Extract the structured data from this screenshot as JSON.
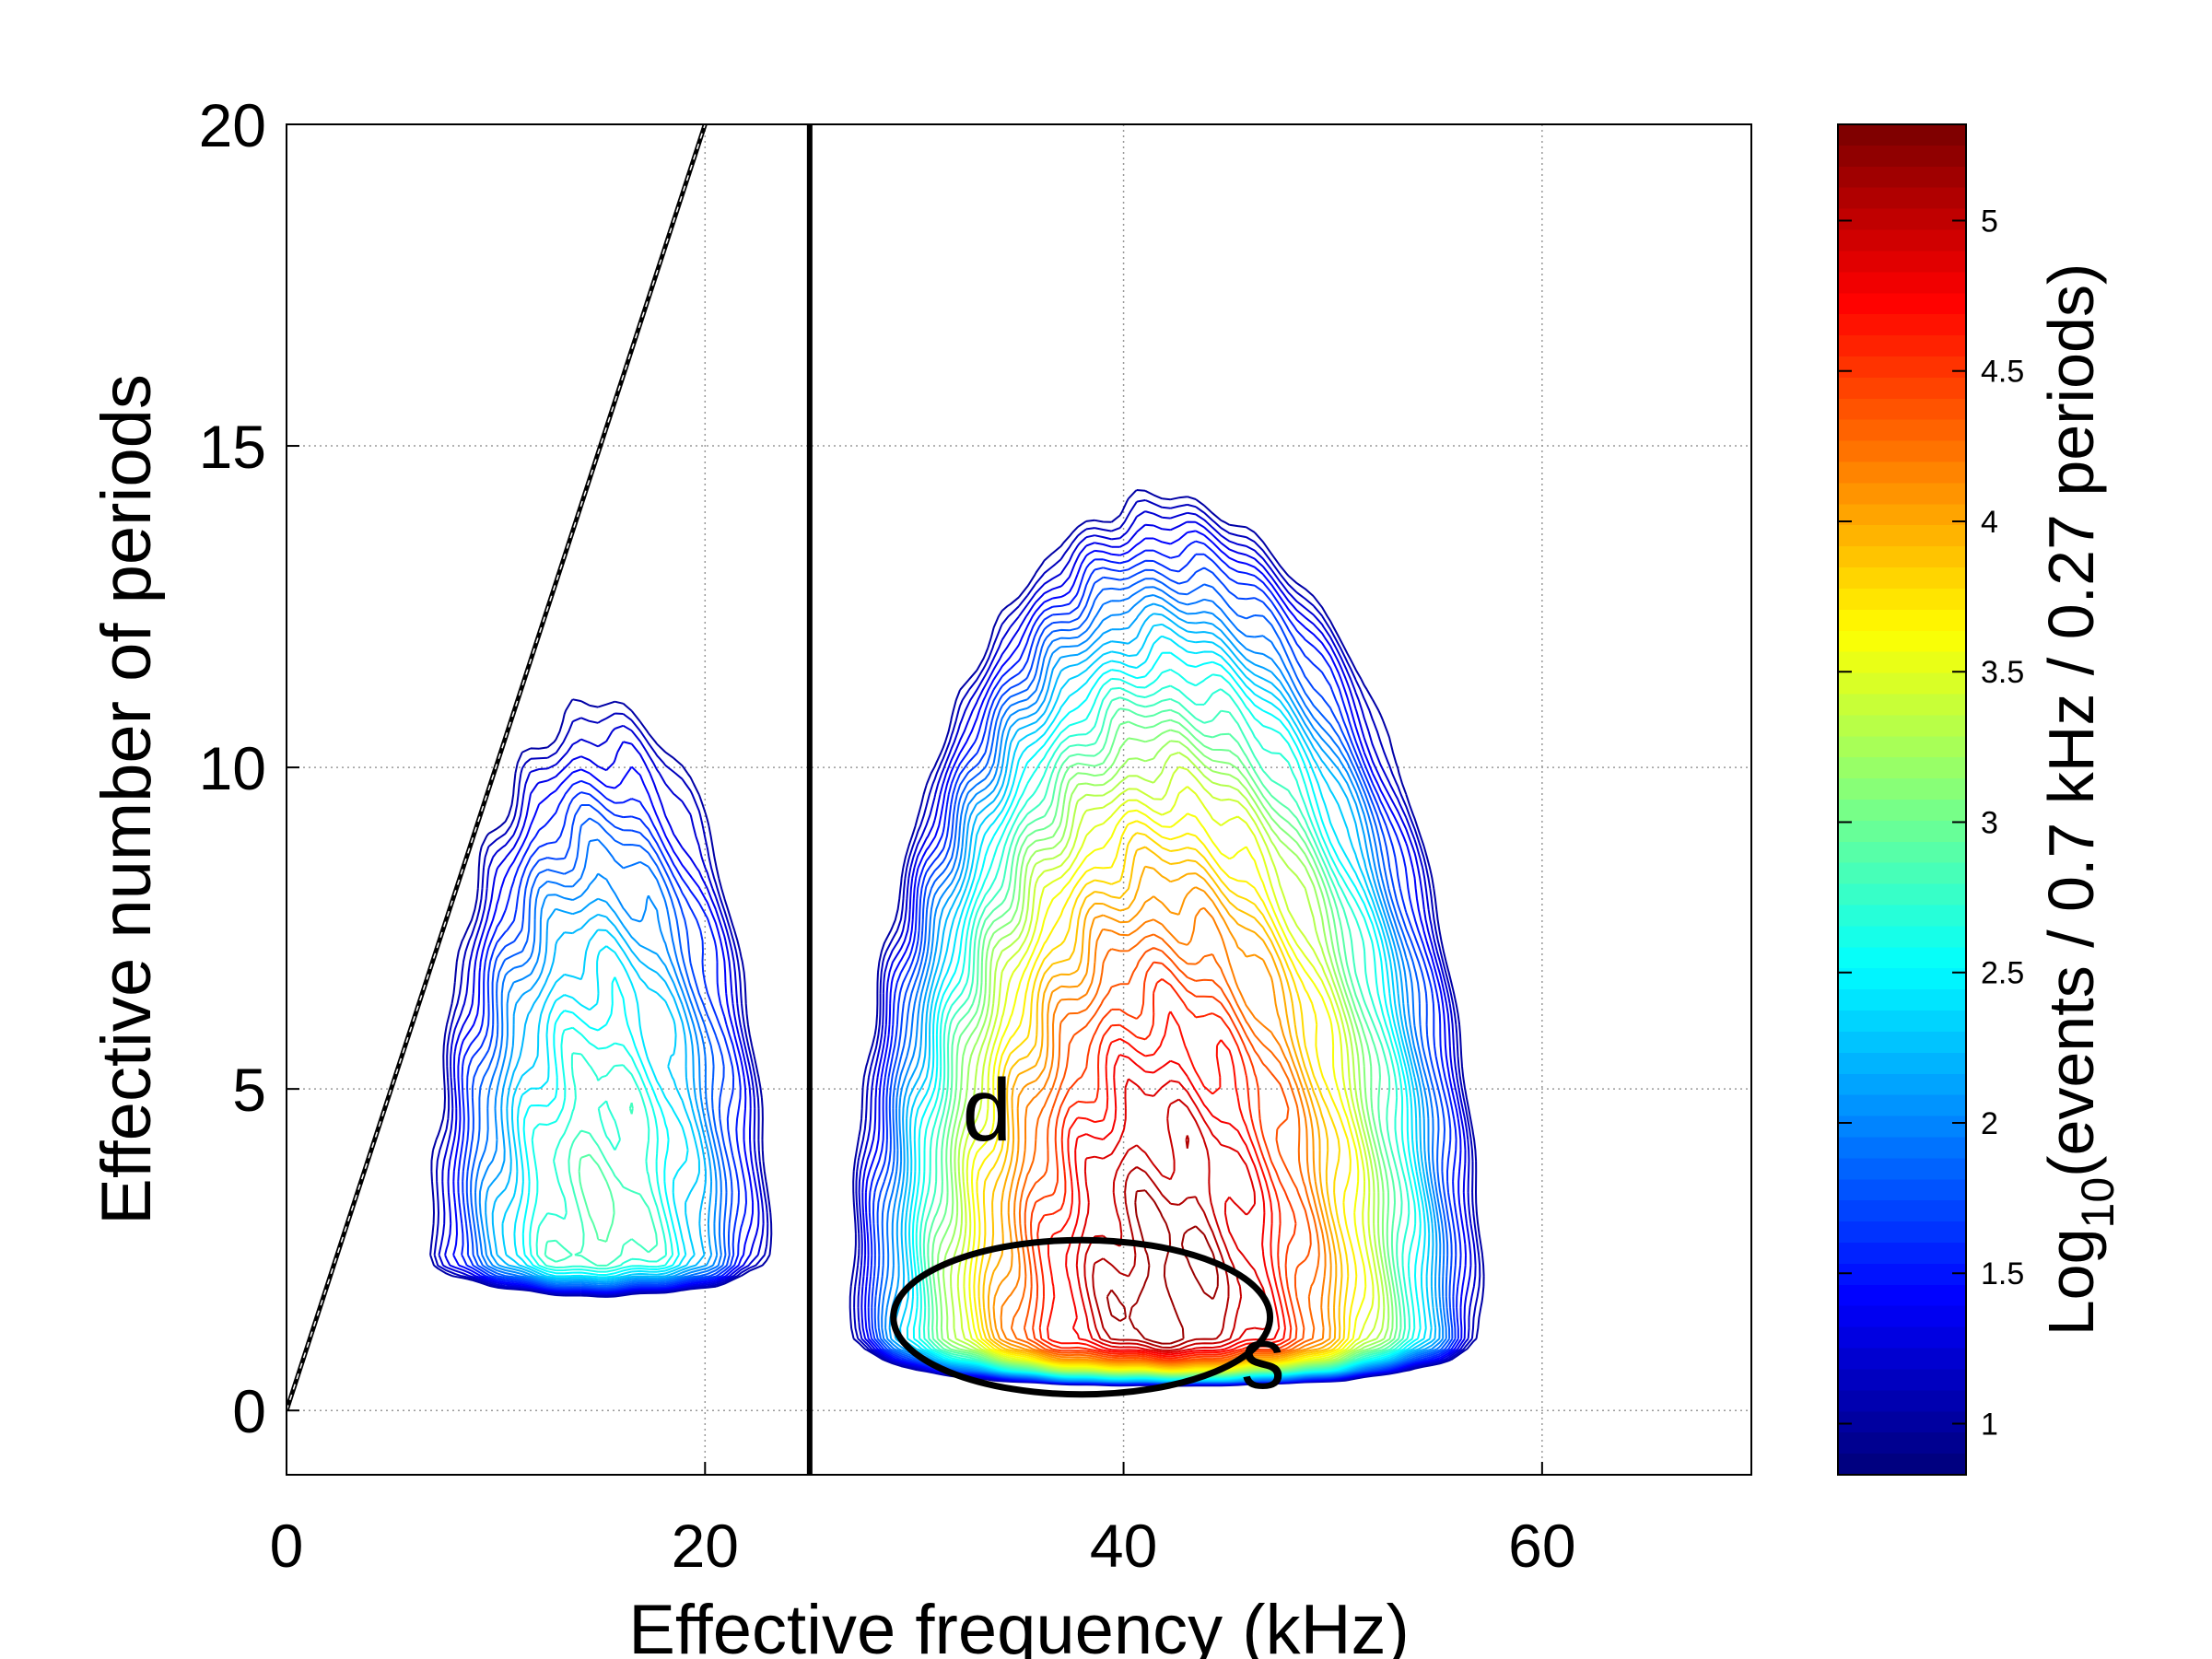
{
  "chart_data": {
    "type": "contour",
    "title": "",
    "xlabel": "Effective frequency (kHz)",
    "ylabel": "Effective number of periods",
    "xlim": [
      0,
      70
    ],
    "ylim": [
      -1,
      20
    ],
    "xticks": [
      0,
      20,
      40,
      60
    ],
    "yticks": [
      0,
      5,
      10,
      15,
      20
    ],
    "grid": true,
    "colorbar": {
      "label_main": "Log",
      "label_sub": "10",
      "label_rest": "(events / 0.7 kHz / 0.27 periods)",
      "range": [
        0.83,
        5.32
      ],
      "ticks": [
        1,
        1.5,
        2,
        2.5,
        3,
        3.5,
        4,
        4.5,
        5
      ],
      "tick_labels": [
        "1",
        "1.5",
        "2",
        "2.5",
        "3",
        "3.5",
        "4",
        "4.5",
        "5"
      ],
      "colormap": "jet"
    },
    "levels": {
      "min": 1.0,
      "max": 5.2,
      "step": 0.1
    },
    "density_model": [
      {
        "name": "main-lobe",
        "peak": 5.25,
        "x0": 42,
        "y0": 1.2,
        "sx": 7.3,
        "sy": 6.3
      },
      {
        "name": "left-lobe",
        "peak": 2.9,
        "x0": 15,
        "y0": 2.4,
        "sx": 5.8,
        "sy": 6.2
      }
    ],
    "bottom_cutoff_y": 0.5,
    "overlays": {
      "vertical_line_x": 25,
      "diagonal_line": [
        [
          0,
          0
        ],
        [
          20,
          20
        ]
      ],
      "ellipse": {
        "cx": 38,
        "cy": 1.45,
        "rx": 9,
        "ry": 1.2
      }
    },
    "annotations": [
      {
        "text": "d",
        "x": 32.3,
        "y": 4.2
      },
      {
        "text": "s",
        "x": 45.6,
        "y": 0.35
      }
    ]
  }
}
